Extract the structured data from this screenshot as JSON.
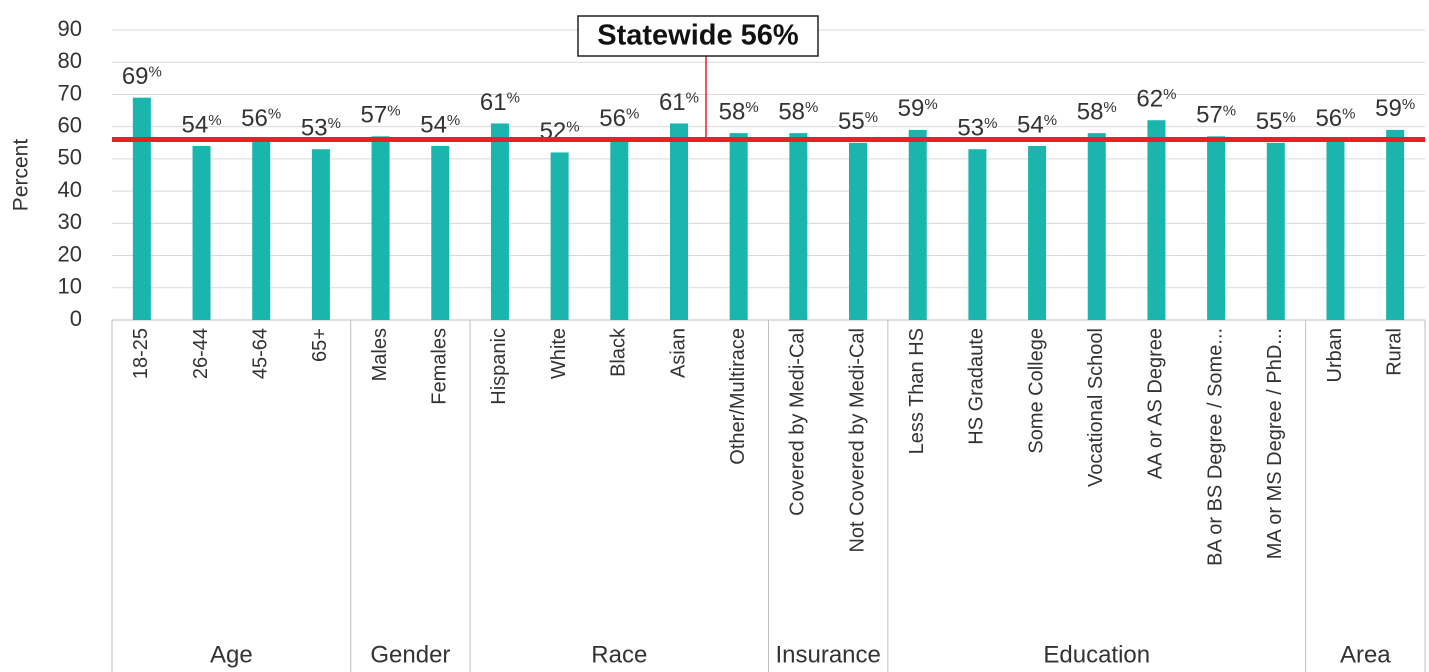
{
  "chart_data": {
    "type": "bar",
    "y_label": "Percent",
    "categories": [
      "18-25",
      "26-44",
      "45-64",
      "65+",
      "Males",
      "Females",
      "Hispanic",
      "White",
      "Black",
      "Asian",
      "Other/Multirace",
      "Covered by Medi-Cal",
      "Not Covered by Medi-Cal",
      "Less Than HS",
      "HS Gradaute",
      "Some College",
      "Vocational School",
      "AA or AS Degree",
      "BA or BS Degree / Some...",
      "MA or MS Degree / PhD...",
      "Urban",
      "Rural"
    ],
    "category_groups": [
      "Age",
      "Age",
      "Age",
      "Age",
      "Gender",
      "Gender",
      "Race",
      "Race",
      "Race",
      "Race",
      "Race",
      "Insurance",
      "Insurance",
      "Education",
      "Education",
      "Education",
      "Education",
      "Education",
      "Education",
      "Education",
      "Area",
      "Area"
    ],
    "values": [
      69,
      54,
      56,
      53,
      57,
      54,
      61,
      52,
      56,
      61,
      58,
      58,
      55,
      59,
      53,
      54,
      58,
      62,
      57,
      55,
      56,
      59
    ],
    "value_labels": [
      "69%",
      "54%",
      "56%",
      "53%",
      "57%",
      "54%",
      "61%",
      "52%",
      "56%",
      "61%",
      "58%",
      "58%",
      "55%",
      "59%",
      "53%",
      "54%",
      "58%",
      "62%",
      "57%",
      "55%",
      "56%",
      "59%"
    ],
    "color": "#1ab5ad",
    "reference_line": {
      "label": "Statewide 56%",
      "value": 56,
      "color": "#e8202a"
    },
    "ylim": [
      0,
      90
    ],
    "yticks": [
      0,
      10,
      20,
      30,
      40,
      50,
      60,
      70,
      80,
      90
    ],
    "grid": true
  }
}
